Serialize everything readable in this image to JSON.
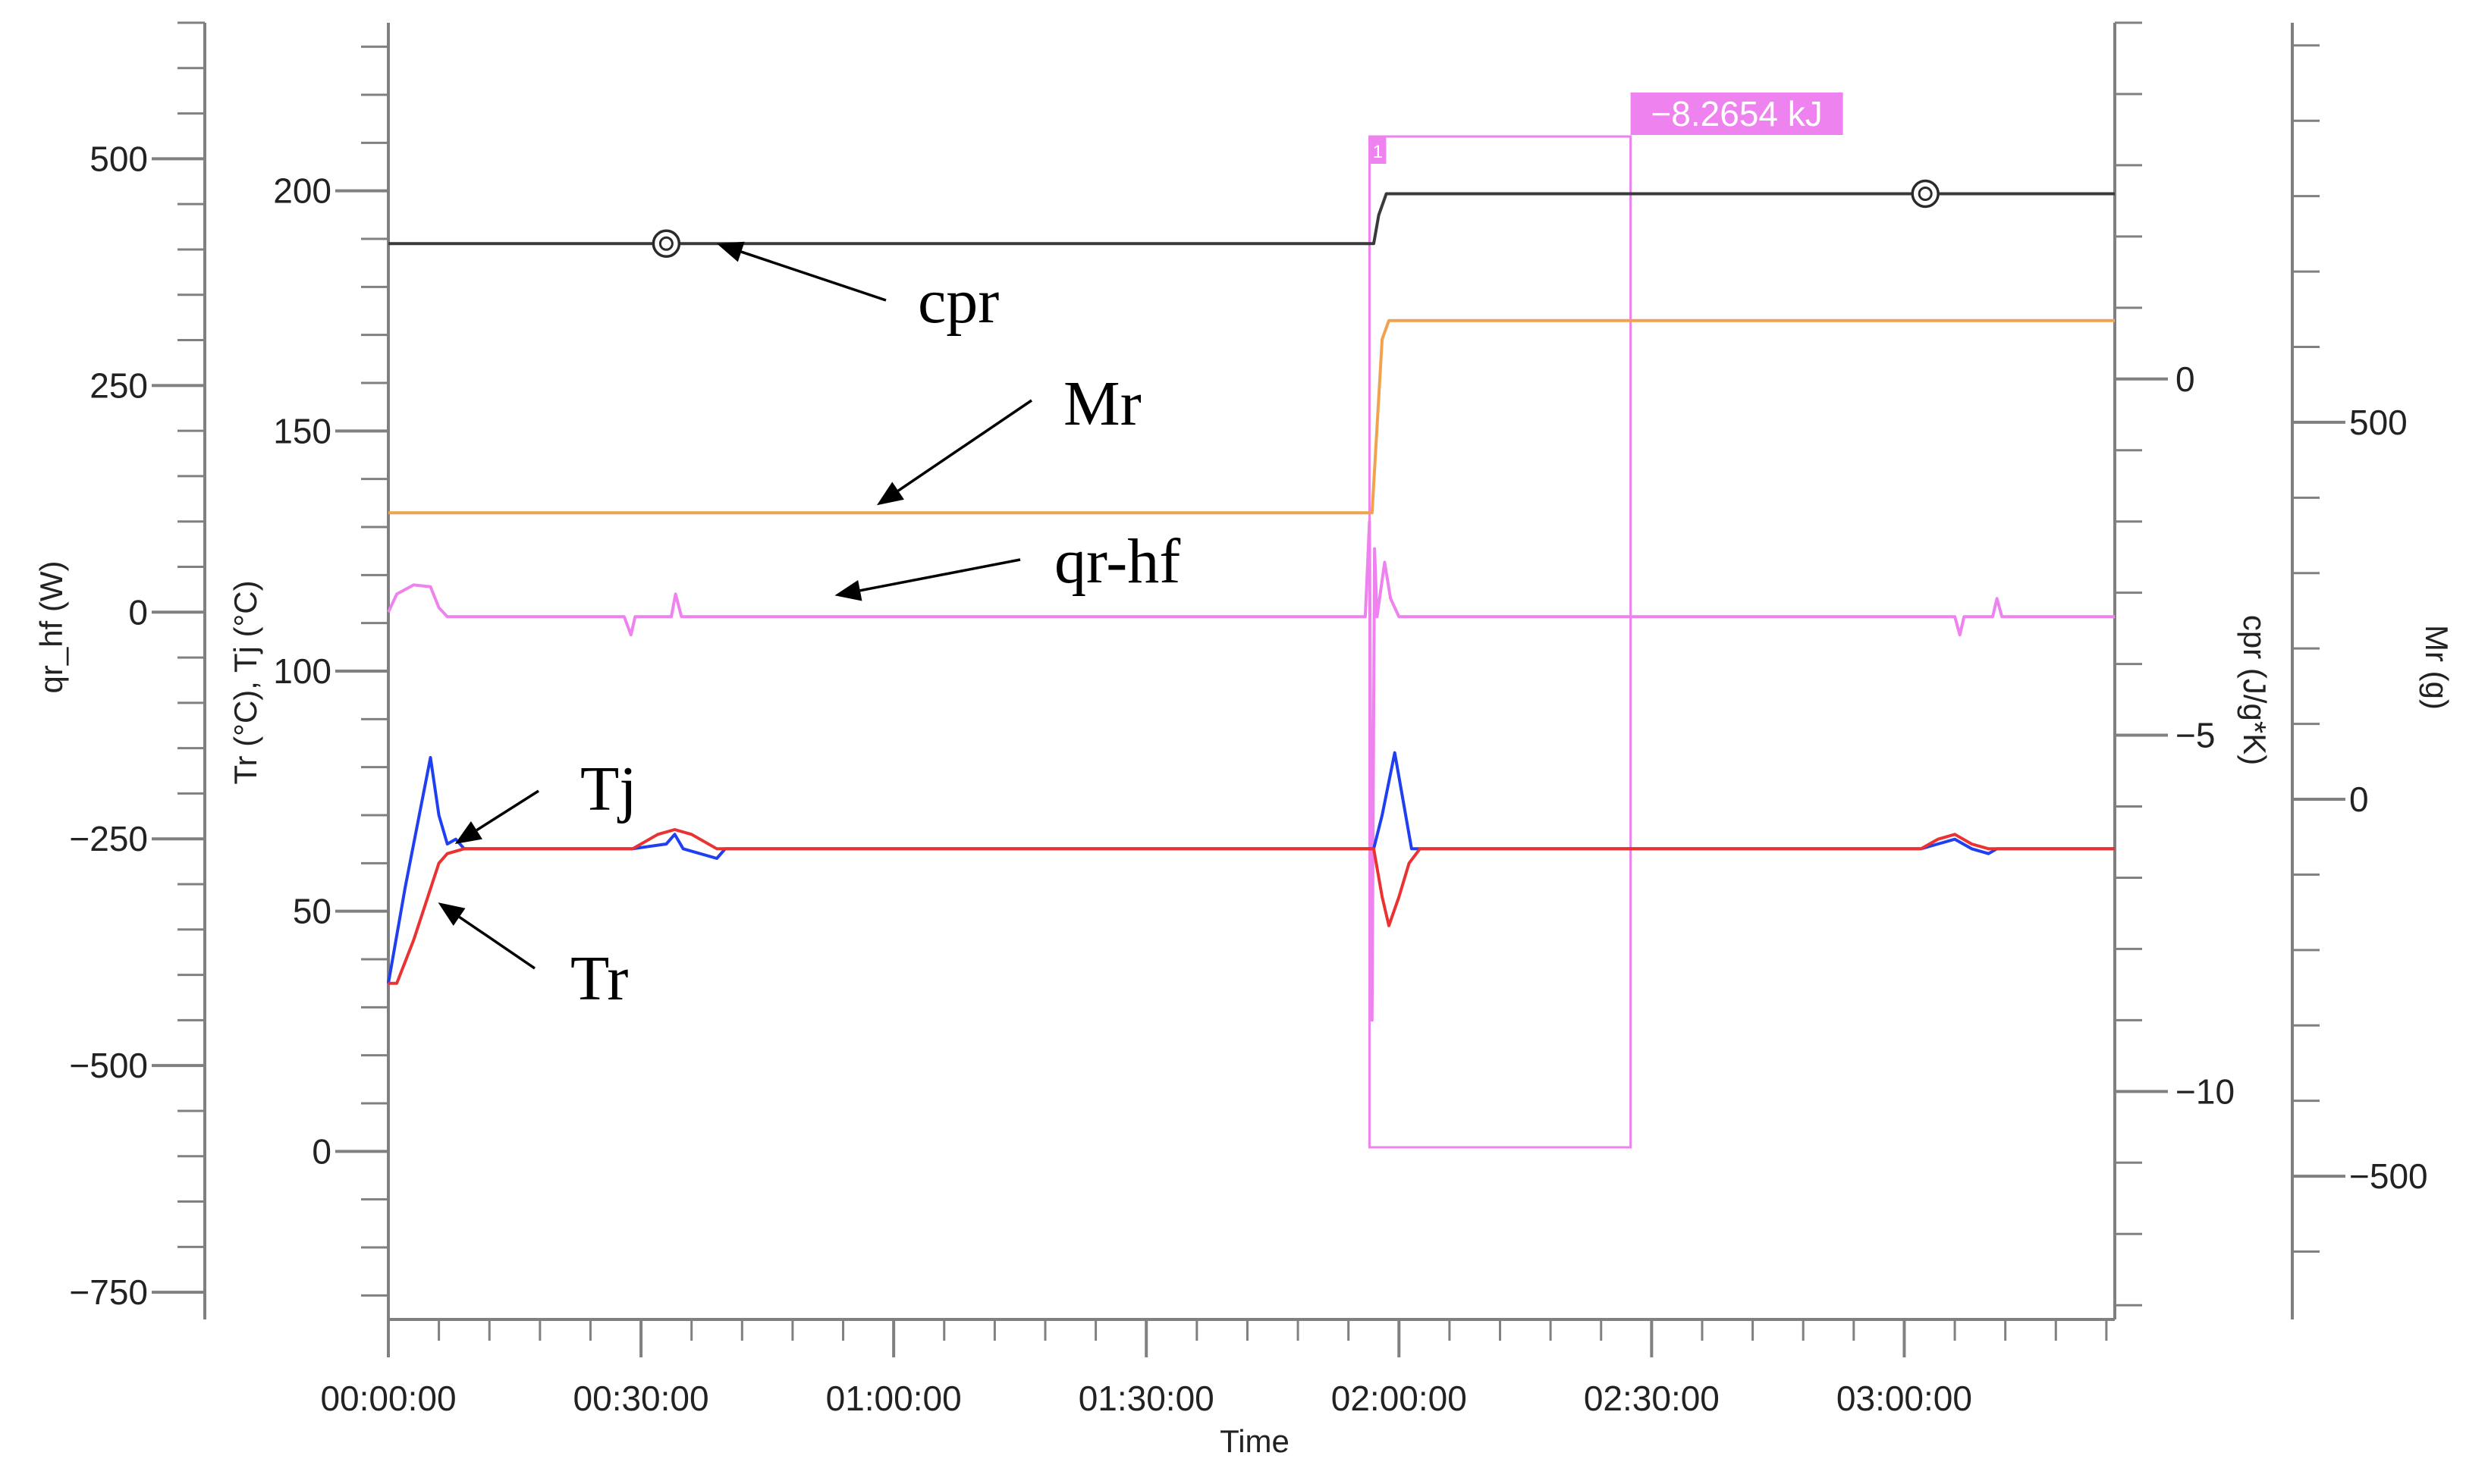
{
  "chart_data": {
    "type": "line",
    "x_label": "Time",
    "x_ticks": [
      "00:00:00",
      "00:30:00",
      "01:00:00",
      "01:30:00",
      "02:00:00",
      "02:30:00",
      "03:00:00"
    ],
    "x_range_minutes": [
      0,
      205
    ],
    "axes": {
      "qr_hf": {
        "title": "qr_hf (W)",
        "range": [
          -780,
          650
        ],
        "ticks": [
          500,
          250,
          0,
          -250,
          -500,
          -750
        ],
        "tick_labels": [
          "500",
          "250",
          "0",
          "−250",
          "−500",
          "−750"
        ]
      },
      "temperature": {
        "title": "Tr (°C), Tj (°C)",
        "range": [
          -35,
          235
        ],
        "ticks": [
          200,
          150,
          100,
          50,
          0
        ],
        "tick_labels": [
          "200",
          "150",
          "100",
          "50",
          "0"
        ]
      },
      "cpr": {
        "title": "cpr (J/g*K)",
        "range": [
          -13.2,
          5.0
        ],
        "ticks": [
          0,
          -5,
          -10
        ],
        "tick_labels": [
          "0",
          "−5",
          "−10"
        ]
      },
      "mass": {
        "title": "Mr (g)",
        "range": [
          -690,
          1030
        ],
        "ticks": [
          500,
          0,
          -500
        ],
        "tick_labels": [
          "500",
          "0",
          "−500"
        ]
      }
    },
    "series": [
      {
        "name": "cpr",
        "axis": "cpr",
        "color": "#3a3a3a",
        "points": [
          [
            0,
            1.9
          ],
          [
            117,
            1.9
          ],
          [
            117.6,
            2.3
          ],
          [
            118.5,
            2.6
          ],
          [
            205,
            2.6
          ]
        ]
      },
      {
        "name": "Mr",
        "axis": "mass",
        "color": "#f2a24e",
        "points": [
          [
            0,
            380
          ],
          [
            116.8,
            380
          ],
          [
            118,
            610
          ],
          [
            118.8,
            635
          ],
          [
            205,
            635
          ]
        ]
      },
      {
        "name": "qr-hf",
        "axis": "qr_hf",
        "color": "#ee82ee",
        "points": [
          [
            0,
            0
          ],
          [
            1,
            20
          ],
          [
            3,
            30
          ],
          [
            5,
            28
          ],
          [
            6,
            5
          ],
          [
            7,
            -5
          ],
          [
            10,
            -5
          ],
          [
            28,
            -5
          ],
          [
            28.8,
            -25
          ],
          [
            29.3,
            -5
          ],
          [
            33.6,
            -5
          ],
          [
            34.1,
            20
          ],
          [
            34.8,
            -5
          ],
          [
            116,
            -5
          ],
          [
            116.5,
            100
          ],
          [
            116.8,
            -450
          ],
          [
            117.1,
            70
          ],
          [
            117.4,
            -5
          ],
          [
            118.3,
            55
          ],
          [
            119,
            15
          ],
          [
            120,
            -5
          ],
          [
            186,
            -5
          ],
          [
            186.6,
            -25
          ],
          [
            187.1,
            -5
          ],
          [
            190.5,
            -5
          ],
          [
            191,
            15
          ],
          [
            191.6,
            -5
          ],
          [
            205,
            -5
          ]
        ]
      },
      {
        "name": "Tj",
        "axis": "temperature",
        "color": "#1f3ff0",
        "points": [
          [
            0,
            35
          ],
          [
            2,
            55
          ],
          [
            5,
            82
          ],
          [
            6,
            70
          ],
          [
            7,
            64
          ],
          [
            8,
            65
          ],
          [
            9,
            63
          ],
          [
            29,
            63
          ],
          [
            33,
            64
          ],
          [
            34,
            66
          ],
          [
            35,
            63
          ],
          [
            39,
            61
          ],
          [
            40,
            63
          ],
          [
            117,
            63
          ],
          [
            118,
            70
          ],
          [
            119.5,
            83
          ],
          [
            120.5,
            73
          ],
          [
            121.5,
            63
          ],
          [
            182,
            63
          ],
          [
            184,
            64
          ],
          [
            186,
            65
          ],
          [
            188,
            63
          ],
          [
            190,
            62
          ],
          [
            191,
            63
          ],
          [
            205,
            63
          ]
        ]
      },
      {
        "name": "Tr",
        "axis": "temperature",
        "color": "#ea3232",
        "points": [
          [
            0,
            35
          ],
          [
            1,
            35
          ],
          [
            3,
            44
          ],
          [
            6,
            60
          ],
          [
            7,
            62
          ],
          [
            9,
            63
          ],
          [
            29,
            63
          ],
          [
            32,
            66
          ],
          [
            34,
            67
          ],
          [
            36,
            66
          ],
          [
            39,
            63
          ],
          [
            117,
            63
          ],
          [
            118,
            53
          ],
          [
            118.8,
            47
          ],
          [
            120,
            53
          ],
          [
            121.2,
            60
          ],
          [
            122.5,
            63
          ],
          [
            182,
            63
          ],
          [
            184,
            65
          ],
          [
            186,
            66
          ],
          [
            188,
            64
          ],
          [
            190,
            63
          ],
          [
            205,
            63
          ]
        ]
      }
    ],
    "markers": [
      {
        "series": "cpr",
        "x_minutes": 33
      },
      {
        "series": "cpr",
        "x_minutes": 182.5
      }
    ],
    "integration": {
      "label": "−8.2654 kJ",
      "index": "1",
      "x_start_minutes": 116.5,
      "x_end_minutes": 147.5,
      "color": "#ee82ee"
    },
    "annotations": [
      {
        "text": "cpr",
        "target_series": "cpr",
        "target_x_minutes": 39
      },
      {
        "text": "Mr",
        "target_series": "Mr",
        "target_x_minutes": 58
      },
      {
        "text": "qr-hf",
        "target_series": "qr-hf",
        "target_x_minutes": 53
      },
      {
        "text": "Tj",
        "target_series": "Tj",
        "target_x_minutes": 7
      },
      {
        "text": "Tr",
        "target_series": "Tr",
        "target_x_minutes": 5
      }
    ]
  }
}
